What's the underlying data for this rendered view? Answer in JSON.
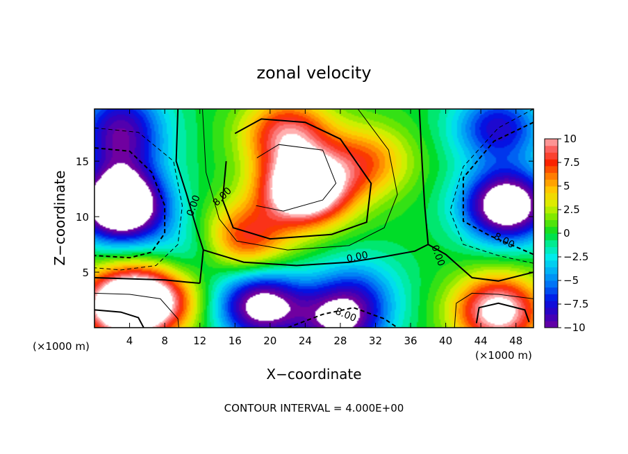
{
  "chart_data": {
    "type": "heatmap",
    "title": "zonal velocity",
    "xlabel": "X−coordinate",
    "ylabel": "Z−coordinate",
    "x_units_label_left": "(×1000 m)",
    "x_units_label_right": "(×1000 m)",
    "x_ticks": [
      4,
      8,
      12,
      16,
      20,
      24,
      28,
      32,
      36,
      40,
      44,
      48
    ],
    "y_ticks": [
      5,
      10,
      15
    ],
    "xlim": [
      0,
      50
    ],
    "ylim": [
      0,
      19.7
    ],
    "colorbar": {
      "min": -10,
      "max": 10,
      "ticks": [
        10,
        7.5,
        5,
        2.5,
        0,
        -2.5,
        -5,
        -7.5,
        -10
      ],
      "tick_labels": [
        "10",
        "7.5",
        "5",
        "2.5",
        "0",
        "−2.5",
        "−5",
        "−7.5",
        "−10"
      ]
    },
    "contour_labels": [
      "0.00",
      "8.00",
      "0.00",
      "0.00",
      "8.00",
      "8.00"
    ],
    "contour_interval_text": "CONTOUR INTERVAL = 4.000E+00",
    "features": [
      {
        "x": 24,
        "z": 12.5,
        "u": 16
      },
      {
        "x": 22,
        "z": 17.5,
        "u": 9
      },
      {
        "x": 31,
        "z": 15,
        "u": 6
      },
      {
        "x": 17,
        "z": 8,
        "u": 8
      },
      {
        "x": 3,
        "z": 11,
        "u": -17
      },
      {
        "x": 3,
        "z": 16,
        "u": -6
      },
      {
        "x": 47,
        "z": 11,
        "u": -14
      },
      {
        "x": 46,
        "z": 18,
        "u": -8
      },
      {
        "x": 3,
        "z": 2,
        "u": 13
      },
      {
        "x": 7,
        "z": 2.5,
        "u": 9
      },
      {
        "x": 46,
        "z": 1.5,
        "u": 12
      },
      {
        "x": 19,
        "z": 2,
        "u": -12
      },
      {
        "x": 28,
        "z": 0.6,
        "u": -10
      },
      {
        "x": 3,
        "z": 19,
        "u": -6
      },
      {
        "x": 30,
        "z": 3.5,
        "u": -4
      },
      {
        "x": 11,
        "z": 7,
        "u": -3
      }
    ],
    "contours": [
      {
        "level": -8,
        "style": "dashed",
        "points": [
          [
            0,
            16.2
          ],
          [
            4,
            15.9
          ],
          [
            6.5,
            14
          ],
          [
            8,
            11
          ],
          [
            8,
            8.5
          ],
          [
            6.5,
            6.8
          ],
          [
            4,
            6.3
          ],
          [
            0,
            6.5
          ]
        ]
      },
      {
        "level": -4,
        "style": "dashed",
        "points": [
          [
            0,
            18
          ],
          [
            5,
            17.6
          ],
          [
            9,
            15
          ],
          [
            10,
            11
          ],
          [
            9.5,
            7.5
          ],
          [
            7,
            5.6
          ],
          [
            3,
            5.2
          ],
          [
            0,
            5.4
          ]
        ]
      },
      {
        "level": -8,
        "style": "dashed",
        "points": [
          [
            50,
            18.5
          ],
          [
            45.5,
            16.8
          ],
          [
            42,
            13.5
          ],
          [
            42,
            9.6
          ],
          [
            45,
            8.3
          ],
          [
            50,
            6.6
          ]
        ]
      },
      {
        "level": -4,
        "style": "dashed",
        "points": [
          [
            50,
            19.7
          ],
          [
            46,
            18
          ],
          [
            42,
            14.5
          ],
          [
            40.5,
            10.5
          ],
          [
            42,
            7.5
          ],
          [
            46,
            6.5
          ],
          [
            50,
            5.8
          ]
        ]
      },
      {
        "level": -8,
        "style": "dashed",
        "points": [
          [
            22,
            0
          ],
          [
            26,
            1.2
          ],
          [
            29.5,
            1.8
          ],
          [
            33,
            0.8
          ],
          [
            34.5,
            0
          ]
        ]
      },
      {
        "level": 0,
        "style": "solid",
        "points": [
          [
            9.5,
            19.7
          ],
          [
            9.3,
            15
          ],
          [
            10.5,
            12
          ],
          [
            11.6,
            9
          ],
          [
            12.4,
            7
          ],
          [
            12,
            4
          ]
        ]
      },
      {
        "level": 0,
        "style": "solid",
        "points": [
          [
            37,
            19.7
          ],
          [
            37.3,
            15
          ],
          [
            37.6,
            11
          ],
          [
            38,
            7.5
          ],
          [
            40,
            6.6
          ],
          [
            43,
            4.5
          ],
          [
            46,
            4.2
          ],
          [
            50,
            5
          ]
        ]
      },
      {
        "level": 0,
        "style": "solid",
        "points": [
          [
            12.4,
            7
          ],
          [
            17,
            5.9
          ],
          [
            23,
            5.6
          ],
          [
            29,
            5.9
          ],
          [
            33,
            6.4
          ],
          [
            36.5,
            6.9
          ],
          [
            38,
            7.5
          ]
        ]
      },
      {
        "level": 4,
        "style": "solid",
        "points": [
          [
            12.3,
            19.7
          ],
          [
            12.7,
            14
          ],
          [
            14.2,
            9.8
          ],
          [
            16.2,
            7.8
          ],
          [
            22,
            7
          ],
          [
            29,
            7.4
          ],
          [
            33,
            9
          ],
          [
            34.5,
            12
          ],
          [
            33.5,
            16
          ],
          [
            30,
            19.7
          ]
        ]
      },
      {
        "level": 8,
        "style": "solid",
        "points": [
          [
            16,
            17.5
          ],
          [
            19,
            18.8
          ],
          [
            24,
            18.5
          ],
          [
            28,
            17
          ],
          [
            31.5,
            13
          ],
          [
            31,
            9.5
          ],
          [
            27,
            8.4
          ],
          [
            20,
            8
          ],
          [
            15.8,
            9
          ],
          [
            14.6,
            11.5
          ],
          [
            15,
            15
          ]
        ]
      },
      {
        "level": 12,
        "style": "solid",
        "points": [
          [
            18.5,
            15.3
          ],
          [
            21,
            16.5
          ],
          [
            26,
            16
          ],
          [
            27.5,
            13
          ],
          [
            26,
            11.5
          ],
          [
            21.5,
            10.5
          ],
          [
            18.4,
            11
          ]
        ]
      },
      {
        "level": 0,
        "style": "solid",
        "points": [
          [
            0,
            4.5
          ],
          [
            4,
            4.4
          ],
          [
            8,
            4.3
          ],
          [
            10.5,
            4.1
          ],
          [
            12,
            4
          ]
        ]
      },
      {
        "level": 4,
        "style": "solid",
        "points": [
          [
            0,
            3.1
          ],
          [
            4,
            3
          ],
          [
            7.5,
            2.6
          ],
          [
            9.5,
            0.8
          ],
          [
            9.6,
            0
          ]
        ]
      },
      {
        "level": 8,
        "style": "solid",
        "points": [
          [
            0,
            1.6
          ],
          [
            3,
            1.4
          ],
          [
            5,
            0.9
          ],
          [
            5.6,
            0
          ]
        ]
      },
      {
        "level": 4,
        "style": "solid",
        "points": [
          [
            41,
            0
          ],
          [
            41.2,
            2.2
          ],
          [
            43,
            3.1
          ],
          [
            46,
            3
          ],
          [
            50,
            2.6
          ]
        ]
      },
      {
        "level": 8,
        "style": "solid",
        "points": [
          [
            43.5,
            0.4
          ],
          [
            43.8,
            1.8
          ],
          [
            46,
            2.2
          ],
          [
            49,
            1.6
          ],
          [
            49.5,
            0.5
          ]
        ]
      }
    ]
  },
  "colors": {
    "axis": "#000000",
    "background": "#ffffff"
  }
}
